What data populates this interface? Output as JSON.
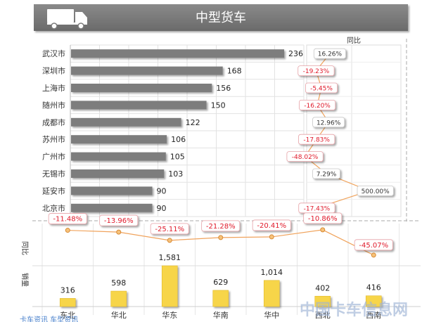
{
  "header": {
    "title": "中型货车",
    "icon": "truck-icon",
    "band_color": "#7a7a7a"
  },
  "yoy_label": "同比",
  "colors": {
    "bar": "#7d7d7d",
    "region_bar": "#f7d54a",
    "line": "#f0a35c",
    "negative": "#e0192a",
    "positive": "#333333"
  },
  "chart_data": [
    {
      "type": "bar",
      "orientation": "horizontal",
      "title": "中型货车",
      "categories": [
        "武汉市",
        "深圳市",
        "上海市",
        "随州市",
        "成都市",
        "苏州市",
        "广州市",
        "无锡市",
        "延安市",
        "北京市"
      ],
      "values": [
        236,
        168,
        156,
        150,
        122,
        106,
        105,
        103,
        90,
        90
      ],
      "xlim": [
        0,
        240
      ],
      "grid": true
    },
    {
      "type": "line",
      "title": "同比",
      "categories": [
        "武汉市",
        "深圳市",
        "上海市",
        "随州市",
        "成都市",
        "苏州市",
        "广州市",
        "无锡市",
        "延安市",
        "北京市"
      ],
      "values": [
        16.26,
        -19.23,
        -5.45,
        -16.2,
        12.96,
        -17.83,
        -48.02,
        7.29,
        500.0,
        -17.43
      ],
      "labels": [
        "16.26%",
        "-19.23%",
        "-5.45%",
        "-16.20%",
        "12.96%",
        "-17.83%",
        "-48.02%",
        "7.29%",
        "500.00%",
        "-17.43%"
      ]
    },
    {
      "type": "line",
      "ylabel": "同比",
      "categories": [
        "东北",
        "华北",
        "华东",
        "华南",
        "华中",
        "西北",
        "西南"
      ],
      "values": [
        -11.48,
        -13.96,
        -25.11,
        -21.28,
        -20.41,
        -10.86,
        -45.07
      ],
      "labels": [
        "-11.48%",
        "-13.96%",
        "-25.11%",
        "-21.28%",
        "-20.41%",
        "-10.86%",
        "-45.07%"
      ]
    },
    {
      "type": "bar",
      "ylabel": "销量",
      "categories": [
        "东北",
        "华北",
        "华东",
        "华南",
        "华中",
        "西北",
        "西南"
      ],
      "values": [
        316,
        598,
        1581,
        629,
        1014,
        402,
        416
      ],
      "labels": [
        "316",
        "598",
        "1,581",
        "629",
        "1,014",
        "402",
        "416"
      ]
    }
  ],
  "watermark": "中国卡车信息网",
  "footer_link": "卡车资讯 车型资讯"
}
